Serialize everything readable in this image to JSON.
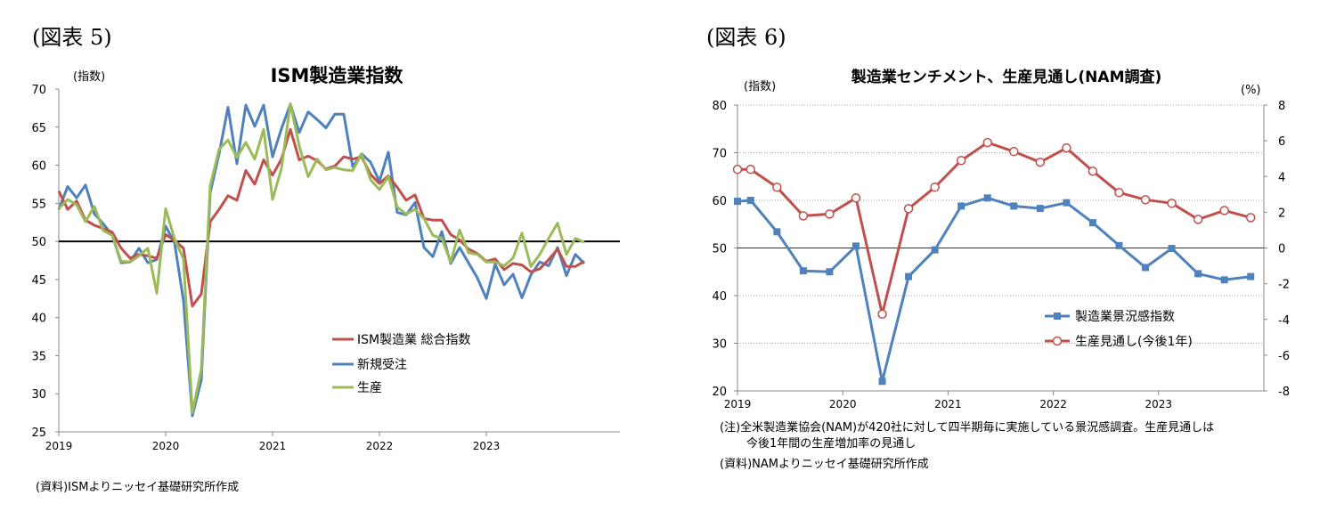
{
  "figures": {
    "fig5": {
      "label": "(図表 5)",
      "source": "(資料)ISMよりニッセイ基礎研究所作成"
    },
    "fig6": {
      "label": "(図表 6)",
      "note_line1": "(注)全米製造業協会(NAM)が420社に対して四半期毎に実施している景況感調査。生産見通しは",
      "note_line2": "今後1年間の生産増加率の見通し",
      "source": "(資料)NAMよりニッセイ基礎研究所作成"
    }
  },
  "chart_data": [
    {
      "type": "line",
      "title": "ISM製造業指数",
      "ylabel": "(指数)",
      "ylim": [
        25,
        70
      ],
      "yticks": [
        25,
        30,
        35,
        40,
        45,
        50,
        55,
        60,
        65,
        70
      ],
      "xlim": [
        2019,
        2024.25
      ],
      "xticks": [
        {
          "v": 2019,
          "label": "2019"
        },
        {
          "v": 2020,
          "label": "2020"
        },
        {
          "v": 2021,
          "label": "2021"
        },
        {
          "v": 2022,
          "label": "2022"
        },
        {
          "v": 2023,
          "label": "2023"
        }
      ],
      "reference_line": 50,
      "x_start": 2019.0,
      "x_step": 0.0833333,
      "legend_position": "bottom-right",
      "series": [
        {
          "name": "ISM製造業 総合指数",
          "color": "#c0504d",
          "values": [
            56.6,
            54.2,
            55.3,
            52.8,
            52.1,
            51.7,
            51.2,
            49.1,
            47.8,
            48.3,
            48.1,
            47.8,
            50.9,
            50.1,
            49.1,
            41.5,
            43.1,
            52.6,
            54.2,
            56.0,
            55.4,
            59.3,
            57.5,
            60.7,
            58.7,
            60.8,
            64.7,
            60.7,
            61.2,
            60.6,
            59.5,
            59.9,
            61.1,
            60.8,
            61.1,
            58.8,
            57.6,
            58.6,
            57.1,
            55.4,
            56.1,
            53.0,
            52.8,
            52.8,
            50.9,
            50.2,
            49.0,
            48.4,
            47.4,
            47.7,
            46.3,
            47.1,
            46.9,
            46.0,
            46.4,
            47.6,
            49.0,
            46.7,
            46.7,
            47.4
          ]
        },
        {
          "name": "新規受注",
          "color": "#4f81bd",
          "values": [
            54.2,
            57.2,
            55.7,
            57.4,
            53.6,
            52.3,
            50.8,
            47.2,
            47.3,
            49.1,
            47.2,
            47.6,
            52.0,
            49.8,
            42.2,
            27.1,
            31.8,
            56.4,
            61.5,
            67.6,
            60.2,
            67.9,
            65.1,
            67.9,
            61.1,
            64.8,
            68.0,
            64.3,
            67.0,
            66.0,
            64.9,
            66.7,
            66.7,
            59.8,
            61.5,
            60.4,
            57.9,
            61.7,
            53.8,
            53.5,
            55.1,
            49.2,
            48.0,
            51.3,
            47.1,
            49.2,
            47.2,
            45.2,
            42.5,
            47.0,
            44.3,
            45.7,
            42.6,
            45.6,
            47.3,
            46.8,
            49.2,
            45.5,
            48.3,
            47.1
          ]
        },
        {
          "name": "生産",
          "color": "#9bbb59",
          "values": [
            54.3,
            55.5,
            54.8,
            52.6,
            54.6,
            51.4,
            50.8,
            47.4,
            47.3,
            48.1,
            49.1,
            43.2,
            54.3,
            50.3,
            47.7,
            27.5,
            33.2,
            57.3,
            62.1,
            63.3,
            61.0,
            63.0,
            60.8,
            64.7,
            55.5,
            59.6,
            68.1,
            62.5,
            58.5,
            60.8,
            59.4,
            59.7,
            59.4,
            59.3,
            61.5,
            58.1,
            56.8,
            58.5,
            54.5,
            53.6,
            54.2,
            53.0,
            50.8,
            50.4,
            47.3,
            51.5,
            48.5,
            48.3,
            47.3,
            47.3,
            46.8,
            47.8,
            51.1,
            46.7,
            48.3,
            50.4,
            52.4,
            48.3,
            50.4,
            49.9
          ]
        }
      ]
    },
    {
      "type": "line",
      "title": "製造業センチメント、生産見通し(NAM調査)",
      "ylabel": "(指数)",
      "y2label": "(%)",
      "ylim": [
        20,
        80
      ],
      "yticks": [
        20,
        30,
        40,
        50,
        60,
        70,
        80
      ],
      "y2lim": [
        -8,
        8
      ],
      "y2ticks": [
        -8,
        -6,
        -4,
        -2,
        0,
        2,
        4,
        6,
        8
      ],
      "xlim": [
        2019,
        2024
      ],
      "xticks": [
        {
          "v": 2019,
          "label": "2019"
        },
        {
          "v": 2020,
          "label": "2020"
        },
        {
          "v": 2021,
          "label": "2021"
        },
        {
          "v": 2022,
          "label": "2022"
        },
        {
          "v": 2023,
          "label": "2023"
        }
      ],
      "reference_line": 50,
      "x": [
        2019.0,
        2019.125,
        2019.375,
        2019.625,
        2019.875,
        2020.125,
        2020.375,
        2020.625,
        2020.875,
        2021.125,
        2021.375,
        2021.625,
        2021.875,
        2022.125,
        2022.375,
        2022.625,
        2022.875,
        2023.125,
        2023.375,
        2023.625,
        2023.875
      ],
      "legend_position": "right",
      "series": [
        {
          "name": "製造業景況感指数",
          "axis": "left",
          "color": "#4f81bd",
          "marker": "square",
          "values": [
            59.8,
            60.0,
            53.4,
            45.2,
            45.0,
            50.4,
            22.0,
            44.0,
            49.6,
            58.8,
            60.5,
            58.8,
            58.3,
            59.5,
            55.3,
            50.5,
            45.9,
            49.9,
            44.6,
            43.3,
            44.0
          ]
        },
        {
          "name": "生産見通し(今後1年)",
          "axis": "right",
          "color": "#c0504d",
          "marker": "circle",
          "values": [
            4.4,
            4.4,
            3.4,
            1.8,
            1.9,
            2.8,
            -3.7,
            2.2,
            3.4,
            4.9,
            5.9,
            5.4,
            4.8,
            5.6,
            4.3,
            3.1,
            2.7,
            2.5,
            1.6,
            2.1,
            1.7
          ]
        }
      ]
    }
  ]
}
